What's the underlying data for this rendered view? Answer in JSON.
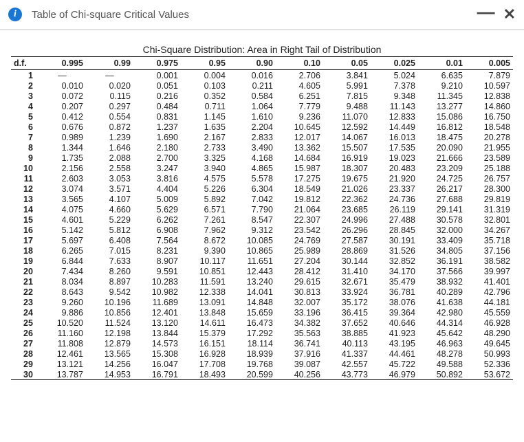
{
  "header": {
    "title": "Table of Chi-square Critical Values",
    "info_glyph": "i",
    "minimize_glyph": "—",
    "close_glyph": "✕"
  },
  "table": {
    "caption": "Chi-Square Distribution: Area in Right Tail of Distribution",
    "df_label": "d.f.",
    "alpha_columns": [
      "0.995",
      "0.99",
      "0.975",
      "0.95",
      "0.90",
      "0.10",
      "0.05",
      "0.025",
      "0.01",
      "0.005"
    ],
    "rows": [
      {
        "df": "1",
        "v": [
          "—",
          "—",
          "0.001",
          "0.004",
          "0.016",
          "2.706",
          "3.841",
          "5.024",
          "6.635",
          "7.879"
        ]
      },
      {
        "df": "2",
        "v": [
          "0.010",
          "0.020",
          "0.051",
          "0.103",
          "0.211",
          "4.605",
          "5.991",
          "7.378",
          "9.210",
          "10.597"
        ]
      },
      {
        "df": "3",
        "v": [
          "0.072",
          "0.115",
          "0.216",
          "0.352",
          "0.584",
          "6.251",
          "7.815",
          "9.348",
          "11.345",
          "12.838"
        ]
      },
      {
        "df": "4",
        "v": [
          "0.207",
          "0.297",
          "0.484",
          "0.711",
          "1.064",
          "7.779",
          "9.488",
          "11.143",
          "13.277",
          "14.860"
        ]
      },
      {
        "df": "5",
        "v": [
          "0.412",
          "0.554",
          "0.831",
          "1.145",
          "1.610",
          "9.236",
          "11.070",
          "12.833",
          "15.086",
          "16.750"
        ]
      },
      {
        "df": "6",
        "v": [
          "0.676",
          "0.872",
          "1.237",
          "1.635",
          "2.204",
          "10.645",
          "12.592",
          "14.449",
          "16.812",
          "18.548"
        ]
      },
      {
        "df": "7",
        "v": [
          "0.989",
          "1.239",
          "1.690",
          "2.167",
          "2.833",
          "12.017",
          "14.067",
          "16.013",
          "18.475",
          "20.278"
        ]
      },
      {
        "df": "8",
        "v": [
          "1.344",
          "1.646",
          "2.180",
          "2.733",
          "3.490",
          "13.362",
          "15.507",
          "17.535",
          "20.090",
          "21.955"
        ]
      },
      {
        "df": "9",
        "v": [
          "1.735",
          "2.088",
          "2.700",
          "3.325",
          "4.168",
          "14.684",
          "16.919",
          "19.023",
          "21.666",
          "23.589"
        ]
      },
      {
        "df": "10",
        "v": [
          "2.156",
          "2.558",
          "3.247",
          "3.940",
          "4.865",
          "15.987",
          "18.307",
          "20.483",
          "23.209",
          "25.188"
        ]
      },
      {
        "df": "11",
        "v": [
          "2.603",
          "3.053",
          "3.816",
          "4.575",
          "5.578",
          "17.275",
          "19.675",
          "21.920",
          "24.725",
          "26.757"
        ]
      },
      {
        "df": "12",
        "v": [
          "3.074",
          "3.571",
          "4.404",
          "5.226",
          "6.304",
          "18.549",
          "21.026",
          "23.337",
          "26.217",
          "28.300"
        ]
      },
      {
        "df": "13",
        "v": [
          "3.565",
          "4.107",
          "5.009",
          "5.892",
          "7.042",
          "19.812",
          "22.362",
          "24.736",
          "27.688",
          "29.819"
        ]
      },
      {
        "df": "14",
        "v": [
          "4.075",
          "4.660",
          "5.629",
          "6.571",
          "7.790",
          "21.064",
          "23.685",
          "26.119",
          "29.141",
          "31.319"
        ]
      },
      {
        "df": "15",
        "v": [
          "4.601",
          "5.229",
          "6.262",
          "7.261",
          "8.547",
          "22.307",
          "24.996",
          "27.488",
          "30.578",
          "32.801"
        ]
      },
      {
        "df": "16",
        "v": [
          "5.142",
          "5.812",
          "6.908",
          "7.962",
          "9.312",
          "23.542",
          "26.296",
          "28.845",
          "32.000",
          "34.267"
        ]
      },
      {
        "df": "17",
        "v": [
          "5.697",
          "6.408",
          "7.564",
          "8.672",
          "10.085",
          "24.769",
          "27.587",
          "30.191",
          "33.409",
          "35.718"
        ]
      },
      {
        "df": "18",
        "v": [
          "6.265",
          "7.015",
          "8.231",
          "9.390",
          "10.865",
          "25.989",
          "28.869",
          "31.526",
          "34.805",
          "37.156"
        ]
      },
      {
        "df": "19",
        "v": [
          "6.844",
          "7.633",
          "8.907",
          "10.117",
          "11.651",
          "27.204",
          "30.144",
          "32.852",
          "36.191",
          "38.582"
        ]
      },
      {
        "df": "20",
        "v": [
          "7.434",
          "8.260",
          "9.591",
          "10.851",
          "12.443",
          "28.412",
          "31.410",
          "34.170",
          "37.566",
          "39.997"
        ]
      },
      {
        "df": "21",
        "v": [
          "8.034",
          "8.897",
          "10.283",
          "11.591",
          "13.240",
          "29.615",
          "32.671",
          "35.479",
          "38.932",
          "41.401"
        ]
      },
      {
        "df": "22",
        "v": [
          "8.643",
          "9.542",
          "10.982",
          "12.338",
          "14.041",
          "30.813",
          "33.924",
          "36.781",
          "40.289",
          "42.796"
        ]
      },
      {
        "df": "23",
        "v": [
          "9.260",
          "10.196",
          "11.689",
          "13.091",
          "14.848",
          "32.007",
          "35.172",
          "38.076",
          "41.638",
          "44.181"
        ]
      },
      {
        "df": "24",
        "v": [
          "9.886",
          "10.856",
          "12.401",
          "13.848",
          "15.659",
          "33.196",
          "36.415",
          "39.364",
          "42.980",
          "45.559"
        ]
      },
      {
        "df": "25",
        "v": [
          "10.520",
          "11.524",
          "13.120",
          "14.611",
          "16.473",
          "34.382",
          "37.652",
          "40.646",
          "44.314",
          "46.928"
        ]
      },
      {
        "df": "26",
        "v": [
          "11.160",
          "12.198",
          "13.844",
          "15.379",
          "17.292",
          "35.563",
          "38.885",
          "41.923",
          "45.642",
          "48.290"
        ]
      },
      {
        "df": "27",
        "v": [
          "11.808",
          "12.879",
          "14.573",
          "16.151",
          "18.114",
          "36.741",
          "40.113",
          "43.195",
          "46.963",
          "49.645"
        ]
      },
      {
        "df": "28",
        "v": [
          "12.461",
          "13.565",
          "15.308",
          "16.928",
          "18.939",
          "37.916",
          "41.337",
          "44.461",
          "48.278",
          "50.993"
        ]
      },
      {
        "df": "29",
        "v": [
          "13.121",
          "14.256",
          "16.047",
          "17.708",
          "19.768",
          "39.087",
          "42.557",
          "45.722",
          "49.588",
          "52.336"
        ]
      },
      {
        "df": "30",
        "v": [
          "13.787",
          "14.953",
          "16.791",
          "18.493",
          "20.599",
          "40.256",
          "43.773",
          "46.979",
          "50.892",
          "53.672"
        ]
      }
    ]
  }
}
